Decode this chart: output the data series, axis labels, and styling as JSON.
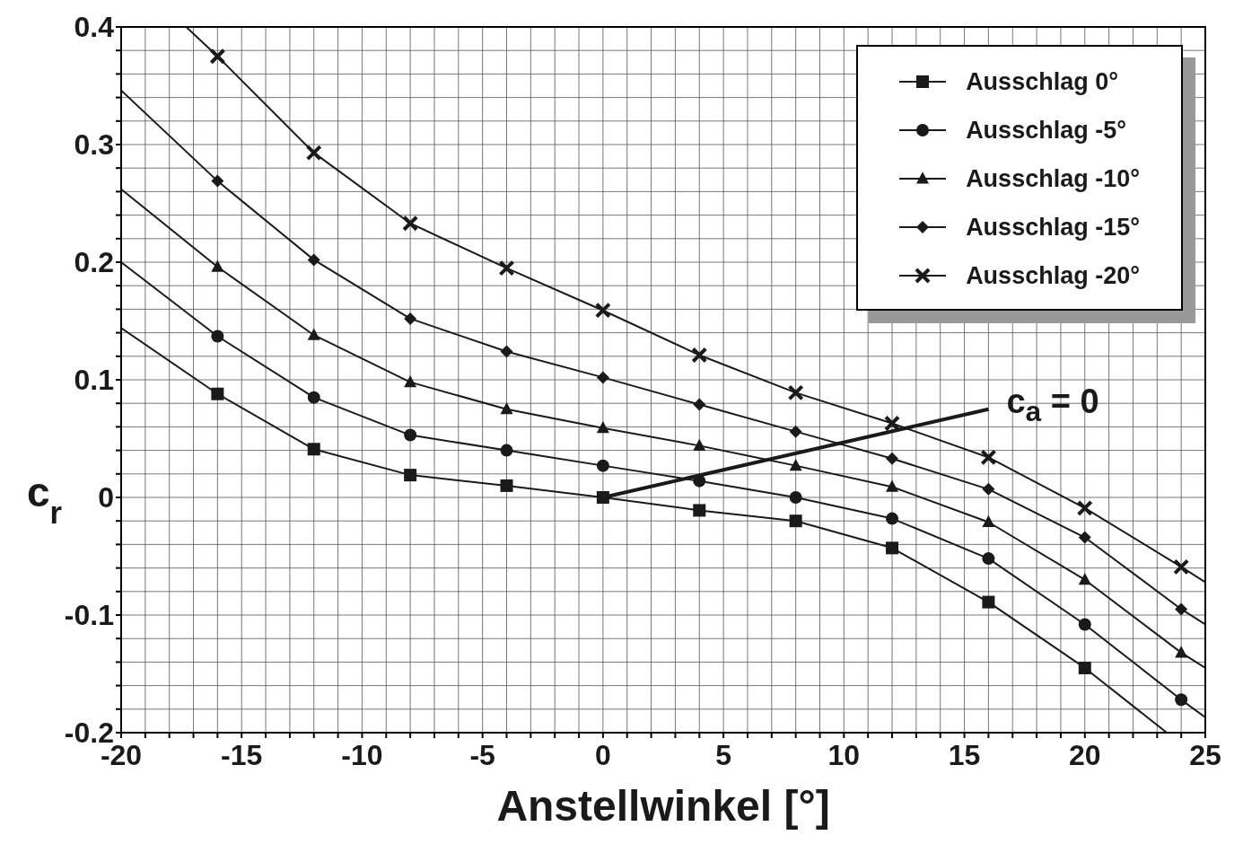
{
  "chart_data": {
    "type": "line",
    "xlabel": "Anstellwinkel [°]",
    "ylabel": "c$_{r}$",
    "xlim": [
      -20,
      25
    ],
    "ylim": [
      -0.2,
      0.4
    ],
    "xticks": [
      -20,
      {
        "value": -19,
        "label": null
      },
      {
        "value": -18,
        "label": null
      },
      {
        "value": -17,
        "label": null
      },
      {
        "value": -16,
        "label": null
      },
      -15,
      {
        "value": -14,
        "label": null
      },
      {
        "value": -13,
        "label": null
      },
      {
        "value": -12,
        "label": null
      },
      {
        "value": -11,
        "label": null
      },
      -10,
      {
        "value": -9,
        "label": null
      },
      {
        "value": -8,
        "label": null
      },
      {
        "value": -7,
        "label": null
      },
      {
        "value": -6,
        "label": null
      },
      -5,
      {
        "value": -4,
        "label": null
      },
      {
        "value": -3,
        "label": null
      },
      {
        "value": -2,
        "label": null
      },
      {
        "value": -1,
        "label": null
      },
      0,
      {
        "value": 1,
        "label": null
      },
      {
        "value": 2,
        "label": null
      },
      {
        "value": 3,
        "label": null
      },
      {
        "value": 4,
        "label": null
      },
      5,
      {
        "value": 6,
        "label": null
      },
      {
        "value": 7,
        "label": null
      },
      {
        "value": 8,
        "label": null
      },
      {
        "value": 9,
        "label": null
      },
      10,
      {
        "value": 11,
        "label": null
      },
      {
        "value": 12,
        "label": null
      },
      {
        "value": 13,
        "label": null
      },
      {
        "value": 14,
        "label": null
      },
      15,
      {
        "value": 16,
        "label": null
      },
      {
        "value": 17,
        "label": null
      },
      {
        "value": 18,
        "label": null
      },
      {
        "value": 19,
        "label": null
      },
      20,
      {
        "value": 21,
        "label": null
      },
      {
        "value": 22,
        "label": null
      },
      {
        "value": 23,
        "label": null
      },
      {
        "value": 24,
        "label": null
      },
      25
    ],
    "yticks": [
      -0.2,
      {
        "value": -0.18,
        "label": null
      },
      {
        "value": -0.16,
        "label": null
      },
      {
        "value": -0.14,
        "label": null
      },
      {
        "value": -0.12,
        "label": null
      },
      -0.1,
      {
        "value": -0.08,
        "label": null
      },
      {
        "value": -0.06,
        "label": null
      },
      {
        "value": -0.04,
        "label": null
      },
      {
        "value": -0.02,
        "label": null
      },
      0,
      {
        "value": 0.02,
        "label": null
      },
      {
        "value": 0.04,
        "label": null
      },
      {
        "value": 0.06,
        "label": null
      },
      {
        "value": 0.08,
        "label": null
      },
      0.1,
      {
        "value": 0.12,
        "label": null
      },
      {
        "value": 0.14,
        "label": null
      },
      {
        "value": 0.16,
        "label": null
      },
      {
        "value": 0.18,
        "label": null
      },
      0.2,
      {
        "value": 0.22,
        "label": null
      },
      {
        "value": 0.24,
        "label": null
      },
      {
        "value": 0.26,
        "label": null
      },
      {
        "value": 0.28,
        "label": null
      },
      0.3,
      {
        "value": 0.32,
        "label": null
      },
      {
        "value": 0.34,
        "label": null
      },
      {
        "value": 0.36,
        "label": null
      },
      {
        "value": 0.38,
        "label": null
      },
      0.4
    ],
    "grid": true,
    "legend": "top right",
    "series": [
      {
        "name": "Ausschlag 0°",
        "color": "#1a1a1a",
        "marker": "square",
        "x": [
          -20,
          -16,
          -12,
          -8,
          -4,
          0,
          4,
          8,
          12,
          16,
          20,
          23.4
        ],
        "values": [
          0.144,
          0.088,
          0.041,
          0.019,
          0.01,
          0,
          -0.011,
          -0.02,
          -0.043,
          -0.089,
          -0.145,
          -0.2
        ]
      },
      {
        "name": "Ausschlag -5°",
        "color": "#1a1a1a",
        "marker": "circle",
        "x": [
          -20,
          -16,
          -12,
          -8,
          -4,
          0,
          4,
          8,
          12,
          16,
          20,
          24,
          25
        ],
        "values": [
          0.2,
          0.137,
          0.085,
          0.053,
          0.04,
          0.027,
          0.014,
          0,
          -0.018,
          -0.052,
          -0.108,
          -0.172,
          -0.187
        ]
      },
      {
        "name": "Ausschlag -10°",
        "color": "#1a1a1a",
        "marker": "triangle",
        "x": [
          -20,
          -16,
          -12,
          -8,
          -4,
          0,
          4,
          8,
          12,
          16,
          20,
          24,
          25
        ],
        "values": [
          0.262,
          0.196,
          0.138,
          0.098,
          0.075,
          0.059,
          0.044,
          0.027,
          0.009,
          -0.021,
          -0.07,
          -0.132,
          -0.145
        ]
      },
      {
        "name": "Ausschlag -15°",
        "color": "#1a1a1a",
        "marker": "diamond",
        "x": [
          -20,
          -16,
          -12,
          -8,
          -4,
          0,
          4,
          8,
          12,
          16,
          20,
          24,
          25
        ],
        "values": [
          0.346,
          0.269,
          0.202,
          0.152,
          0.124,
          0.102,
          0.079,
          0.056,
          0.033,
          0.007,
          -0.034,
          -0.095,
          -0.108
        ]
      },
      {
        "name": "Ausschlag -20°",
        "color": "#1a1a1a",
        "marker": "cross",
        "x": [
          -17.3,
          -16,
          -12,
          -8,
          -4,
          0,
          4,
          8,
          12,
          16,
          20,
          24,
          25
        ],
        "values": [
          0.4,
          0.375,
          0.293,
          0.233,
          0.195,
          0.159,
          0.121,
          0.089,
          0.063,
          0.034,
          -0.009,
          -0.059,
          -0.072
        ]
      },
      {
        "color": "#1a1a1a",
        "marker": "none",
        "x": [
          0,
          16
        ],
        "values": [
          0,
          0.075
        ]
      }
    ],
    "annotations": [
      {
        "text": "c$_{a}$ = 0",
        "x": 16,
        "y": 0.075
      }
    ]
  }
}
